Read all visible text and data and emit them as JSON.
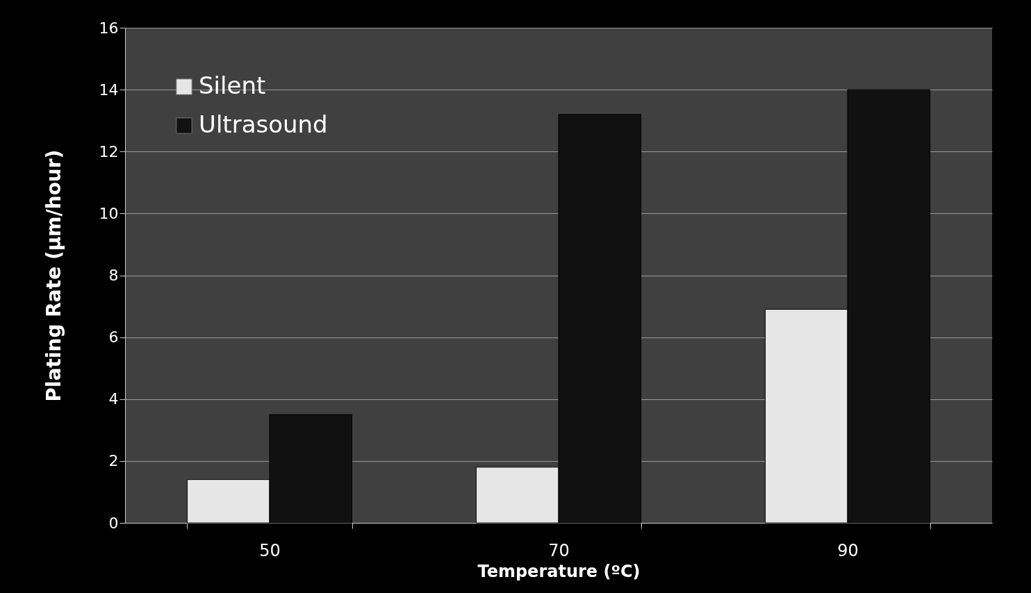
{
  "chart_data": {
    "type": "bar",
    "xlabel": "Temperature (ºC)",
    "ylabel": "Plating Rate (μm/hour)",
    "categories": [
      "50",
      "70",
      "90"
    ],
    "series": [
      {
        "name": "Silent",
        "color": "#e6e6e6",
        "values": [
          1.4,
          1.8,
          6.9
        ]
      },
      {
        "name": "Ultrasound",
        "color": "#111111",
        "values": [
          3.5,
          13.2,
          14.0
        ]
      }
    ],
    "ylim": [
      0,
      16
    ],
    "yticks": [
      0,
      2,
      4,
      6,
      8,
      10,
      12,
      14,
      16
    ],
    "grid": "y",
    "legend": "top left"
  }
}
